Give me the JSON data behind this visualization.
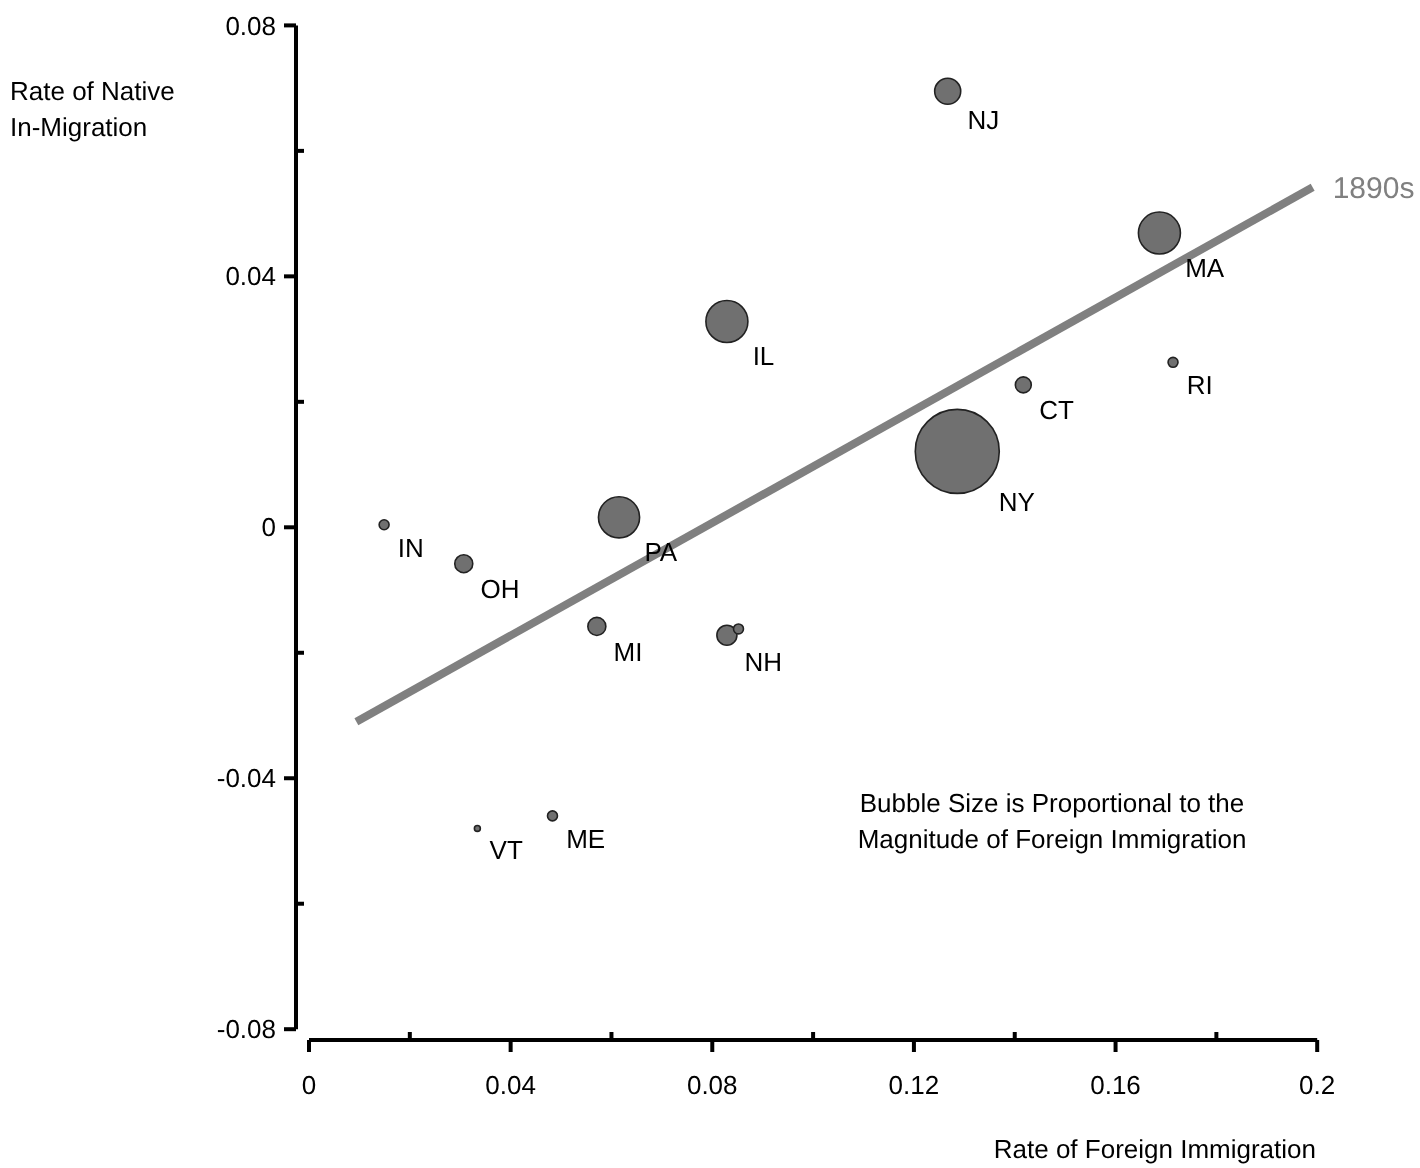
{
  "chart_data": {
    "type": "bubble",
    "xlabel": "Rate of Foreign Immigration",
    "ylabel": "Rate of Native\nIn-Migration",
    "xlim": [
      0,
      0.2
    ],
    "ylim": [
      -0.08,
      0.08
    ],
    "xticks": [
      0,
      {
        "value": 0.02,
        "label": null
      },
      0.04,
      {
        "value": 0.06,
        "label": null
      },
      0.08,
      {
        "value": 0.1,
        "label": null
      },
      0.12,
      {
        "value": 0.14,
        "label": null
      },
      0.16,
      {
        "value": 0.18,
        "label": null
      },
      0.2
    ],
    "yticks": [
      -0.08,
      {
        "value": -0.06,
        "label": null
      },
      -0.04,
      {
        "value": -0.02,
        "label": null
      },
      0,
      {
        "value": 0.02,
        "label": null
      },
      0.04,
      {
        "value": 0.06,
        "label": null
      },
      0.08
    ],
    "grid": false,
    "series": [
      {
        "marker": "circle",
        "color": "#707070",
        "x": [
          0.1267,
          0.1687,
          0.0829,
          0.1417,
          0.1714,
          0.1286,
          0.0615,
          0.0149,
          0.0307,
          0.0571,
          0.0829,
          0.0852,
          0.0334,
          0.0483
        ],
        "values": [
          0.0695,
          0.0469,
          0.0328,
          0.0227,
          0.0263,
          0.0121,
          0.0016,
          0.0004,
          -0.0058,
          -0.0158,
          -0.0172,
          -0.0162,
          -0.048,
          -0.046
        ],
        "sizes": [
          0.096,
          0.25,
          0.25,
          0.036,
          0.014,
          1,
          0.24,
          0.014,
          0.046,
          0.046,
          0.057,
          0.014,
          0.005,
          0.014
        ]
      },
      {
        "type": "line",
        "name": "1890s",
        "color": "#808080",
        "x": [
          0.0094,
          0.1991
        ],
        "values": [
          -0.031,
          0.0542
        ]
      }
    ],
    "annotations": [
      {
        "text": "NJ",
        "x": 0.1267,
        "y": 0.0695
      },
      {
        "text": "MA",
        "x": 0.1687,
        "y": 0.0469
      },
      {
        "text": "IL",
        "x": 0.0829,
        "y": 0.0328
      },
      {
        "text": "CT",
        "x": 0.1417,
        "y": 0.0227
      },
      {
        "text": "RI",
        "x": 0.1714,
        "y": 0.0263
      },
      {
        "text": "NY",
        "x": 0.1286,
        "y": 0.0121
      },
      {
        "text": "PA",
        "x": 0.0615,
        "y": 0.0016
      },
      {
        "text": "IN",
        "x": 0.0149,
        "y": 0.0004
      },
      {
        "text": "OH",
        "x": 0.0307,
        "y": -0.0058
      },
      {
        "text": "MI",
        "x": 0.0571,
        "y": -0.0158
      },
      {
        "text": "NH",
        "x": 0.0829,
        "y": -0.0172
      },
      {
        "text": "VT",
        "x": 0.0334,
        "y": -0.048
      },
      {
        "text": "ME",
        "x": 0.0483,
        "y": -0.046
      },
      "Bubble Size is Proportional to the\nMagnitude of Foreign Immigration"
    ]
  }
}
